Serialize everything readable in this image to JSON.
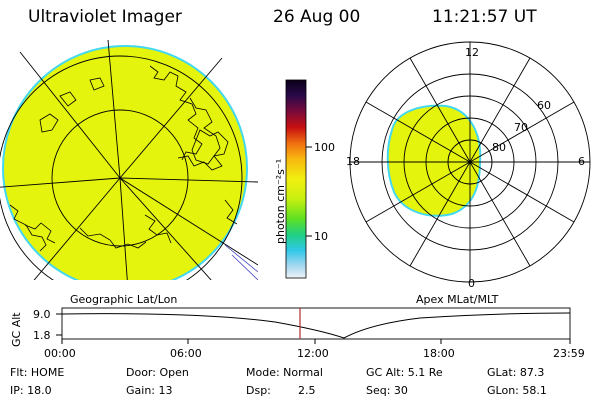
{
  "header": {
    "title": "Ultraviolet Imager",
    "date": "26 Aug 00",
    "time": "11:21:57 UT"
  },
  "colorbar": {
    "unit_label": "photon cm⁻²s⁻¹",
    "ticks": [
      "100",
      "10"
    ]
  },
  "geo_panel": {
    "caption": "Geographic Lat/Lon"
  },
  "polar_panel": {
    "caption": "Apex MLat/MLT",
    "mlt_labels": [
      "12",
      "18",
      "6",
      "0"
    ],
    "mlat_labels": [
      "60",
      "70",
      "80"
    ]
  },
  "altitude_plot": {
    "ylabel": "GC Alt",
    "yticks": [
      "9.0",
      "1.8"
    ],
    "xticks": [
      "00:00",
      "06:00",
      "12:00",
      "18:00",
      "23:59"
    ]
  },
  "status": {
    "flt": "Flt: HOME",
    "ip": "IP: 18.0",
    "door": "Door: Open",
    "gain": "Gain: 13",
    "mode": "Mode: Normal",
    "dsp_label": "Dsp:",
    "dsp_value": "2.5",
    "gc_alt": "GC Alt: 5.1 Re",
    "seq": "Seq: 30",
    "glat": "GLat:  87.3",
    "glon": "GLon:  58.1"
  },
  "colors": {
    "aurora_fill": "#e4f40c",
    "aurora_edge": "#44d8f0",
    "grid": "#000000",
    "time_marker": "#b03030"
  }
}
